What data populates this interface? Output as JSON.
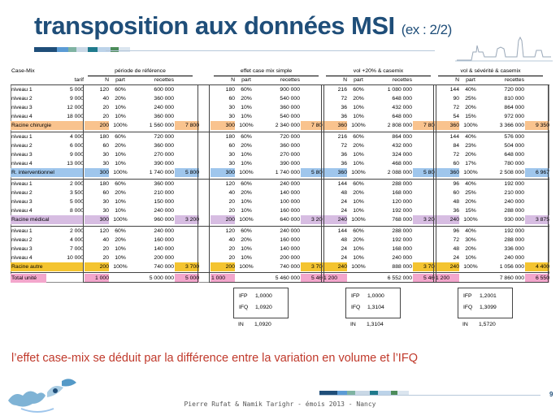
{
  "slide": {
    "title": "transposition aux données MSI",
    "title_sub": "(ex : 2/2)",
    "conclusion": "l’effet case-mix se déduit par la différence entre la variation en volume et l’IFQ",
    "footer": "Pierre Rufat & Namik Tarighr - émois 2013 - Nancy",
    "page_number": "9"
  },
  "colors": {
    "title": "#1f4e79",
    "conclusion": "#c0392b",
    "orange": "#f9c38e",
    "blue": "#9fc6ec",
    "purple": "#d7bde2",
    "yellow": "#f4c430",
    "pink": "#f3a6cc"
  },
  "table": {
    "header": {
      "casemix": "Case-Mix",
      "groups": [
        "période de référence",
        "effet case mix simple",
        "vol +20% & casemix",
        "vol & sévérité & casemix"
      ],
      "tarif": "tarif",
      "sub": [
        "N",
        "part",
        "recettes"
      ]
    },
    "blocks": [
      {
        "rows": [
          {
            "label": "niveau 1",
            "tarif": "5 000",
            "g": [
              [
                "120",
                "60%",
                "600 000"
              ],
              [
                "180",
                "60%",
                "900 000"
              ],
              [
                "216",
                "60%",
                "1 080 000"
              ],
              [
                "144",
                "40%",
                "720 000"
              ]
            ]
          },
          {
            "label": "niveau 2",
            "tarif": "9 000",
            "g": [
              [
                "40",
                "20%",
                "360 000"
              ],
              [
                "60",
                "20%",
                "540 000"
              ],
              [
                "72",
                "20%",
                "648 000"
              ],
              [
                "90",
                "25%",
                "810 000"
              ]
            ]
          },
          {
            "label": "niveau 3",
            "tarif": "12 000",
            "g": [
              [
                "20",
                "10%",
                "240 000"
              ],
              [
                "30",
                "10%",
                "360 000"
              ],
              [
                "36",
                "10%",
                "432 000"
              ],
              [
                "72",
                "20%",
                "864 000"
              ]
            ]
          },
          {
            "label": "niveau 4",
            "tarif": "18 000",
            "g": [
              [
                "20",
                "10%",
                "360 000"
              ],
              [
                "30",
                "10%",
                "540 000"
              ],
              [
                "36",
                "10%",
                "648 000"
              ],
              [
                "54",
                "15%",
                "972 000"
              ]
            ]
          }
        ],
        "total": {
          "label": "Racine chirurgie",
          "g": [
            [
              "200",
              "100%",
              "1 560 000",
              "7 800"
            ],
            [
              "300",
              "100%",
              "2 340 000",
              "7 800"
            ],
            [
              "360",
              "100%",
              "2 808 000",
              "7 800"
            ],
            [
              "360",
              "100%",
              "3 366 000",
              "9 350"
            ]
          ]
        },
        "color": "#f9c38e"
      },
      {
        "rows": [
          {
            "label": "niveau 1",
            "tarif": "4 000",
            "g": [
              [
                "180",
                "60%",
                "720 000"
              ],
              [
                "180",
                "60%",
                "720 000"
              ],
              [
                "216",
                "60%",
                "864 000"
              ],
              [
                "144",
                "40%",
                "576 000"
              ]
            ]
          },
          {
            "label": "niveau 2",
            "tarif": "6 000",
            "g": [
              [
                "60",
                "20%",
                "360 000"
              ],
              [
                "60",
                "20%",
                "360 000"
              ],
              [
                "72",
                "20%",
                "432 000"
              ],
              [
                "84",
                "23%",
                "504 000"
              ]
            ]
          },
          {
            "label": "niveau 3",
            "tarif": "9 000",
            "g": [
              [
                "30",
                "10%",
                "270 000"
              ],
              [
                "30",
                "10%",
                "270 000"
              ],
              [
                "36",
                "10%",
                "324 000"
              ],
              [
                "72",
                "20%",
                "648 000"
              ]
            ]
          },
          {
            "label": "niveau 4",
            "tarif": "13 000",
            "g": [
              [
                "30",
                "10%",
                "390 000"
              ],
              [
                "30",
                "10%",
                "390 000"
              ],
              [
                "36",
                "10%",
                "468 000"
              ],
              [
                "60",
                "17%",
                "780 000"
              ]
            ]
          }
        ],
        "total": {
          "label": "R. interventionnel",
          "g": [
            [
              "300",
              "100%",
              "1 740 000",
              "5 800"
            ],
            [
              "300",
              "100%",
              "1 740 000",
              "5 800"
            ],
            [
              "360",
              "100%",
              "2 088 000",
              "5 800"
            ],
            [
              "360",
              "100%",
              "2 508 000",
              "6 967"
            ]
          ]
        },
        "color": "#9fc6ec"
      },
      {
        "rows": [
          {
            "label": "niveau 1",
            "tarif": "2 000",
            "g": [
              [
                "180",
                "60%",
                "360 000"
              ],
              [
                "120",
                "60%",
                "240 000"
              ],
              [
                "144",
                "60%",
                "288 000"
              ],
              [
                "96",
                "40%",
                "192 000"
              ]
            ]
          },
          {
            "label": "niveau 2",
            "tarif": "3 500",
            "g": [
              [
                "60",
                "20%",
                "210 000"
              ],
              [
                "40",
                "20%",
                "140 000"
              ],
              [
                "48",
                "20%",
                "168 000"
              ],
              [
                "60",
                "25%",
                "210 000"
              ]
            ]
          },
          {
            "label": "niveau 3",
            "tarif": "5 000",
            "g": [
              [
                "30",
                "10%",
                "150 000"
              ],
              [
                "20",
                "10%",
                "100 000"
              ],
              [
                "24",
                "10%",
                "120 000"
              ],
              [
                "48",
                "20%",
                "240 000"
              ]
            ]
          },
          {
            "label": "niveau 4",
            "tarif": "8 000",
            "g": [
              [
                "30",
                "10%",
                "240 000"
              ],
              [
                "20",
                "10%",
                "160 000"
              ],
              [
                "24",
                "10%",
                "192 000"
              ],
              [
                "36",
                "15%",
                "288 000"
              ]
            ]
          }
        ],
        "total": {
          "label": "Racine médical",
          "g": [
            [
              "300",
              "100%",
              "960 000",
              "3 200"
            ],
            [
              "200",
              "100%",
              "640 000",
              "3 200"
            ],
            [
              "240",
              "100%",
              "768 000",
              "3 200"
            ],
            [
              "240",
              "100%",
              "930 000",
              "3 875"
            ]
          ]
        },
        "color": "#d7bde2"
      },
      {
        "rows": [
          {
            "label": "niveau 1",
            "tarif": "2 000",
            "g": [
              [
                "120",
                "60%",
                "240 000"
              ],
              [
                "120",
                "60%",
                "240 000"
              ],
              [
                "144",
                "60%",
                "288 000"
              ],
              [
                "96",
                "40%",
                "192 000"
              ]
            ]
          },
          {
            "label": "niveau 2",
            "tarif": "4 000",
            "g": [
              [
                "40",
                "20%",
                "160 000"
              ],
              [
                "40",
                "20%",
                "160 000"
              ],
              [
                "48",
                "20%",
                "192 000"
              ],
              [
                "72",
                "30%",
                "288 000"
              ]
            ]
          },
          {
            "label": "niveau 3",
            "tarif": "7 000",
            "g": [
              [
                "20",
                "10%",
                "140 000"
              ],
              [
                "20",
                "10%",
                "140 000"
              ],
              [
                "24",
                "10%",
                "168 000"
              ],
              [
                "48",
                "20%",
                "336 000"
              ]
            ]
          },
          {
            "label": "niveau 4",
            "tarif": "10 000",
            "g": [
              [
                "20",
                "10%",
                "200 000"
              ],
              [
                "20",
                "10%",
                "200 000"
              ],
              [
                "24",
                "10%",
                "240 000"
              ],
              [
                "24",
                "10%",
                "240 000"
              ]
            ]
          }
        ],
        "total": {
          "label": "Racine autre",
          "g": [
            [
              "200",
              "100%",
              "740 000",
              "3 700"
            ],
            [
              "200",
              "100%",
              "740 000",
              "3 700"
            ],
            [
              "240",
              "100%",
              "888 000",
              "3 700"
            ],
            [
              "240",
              "100%",
              "1 056 000",
              "4 400"
            ]
          ]
        },
        "color": "#f4c430"
      }
    ],
    "grand_total": {
      "label": "Total unité",
      "g": [
        [
          "1 000",
          "",
          "5 000 000",
          "5 000"
        ],
        [
          "1 000",
          "",
          "5 460 000",
          "5 460"
        ],
        [
          "1 200",
          "",
          "6 552 000",
          "5 460"
        ],
        [
          "1 200",
          "",
          "7 860 000",
          "6 550"
        ]
      ]
    },
    "grand_color": "#f3a6cc"
  },
  "indices": [
    {
      "ifp_label": "IFP",
      "ifp": "1,0000",
      "ifq_label": "IFQ",
      "ifq": "1,0920",
      "in_label": "IN",
      "in": "1,0920"
    },
    {
      "ifp_label": "IFP",
      "ifp": "1,0000",
      "ifq_label": "IFQ",
      "ifq": "1,3104",
      "in_label": "IN",
      "in": "1,3104"
    },
    {
      "ifp_label": "IFP",
      "ifp": "1,2001",
      "ifq_label": "IFQ",
      "ifq": "1,3099",
      "in_label": "IN",
      "in": "1,5720"
    }
  ]
}
